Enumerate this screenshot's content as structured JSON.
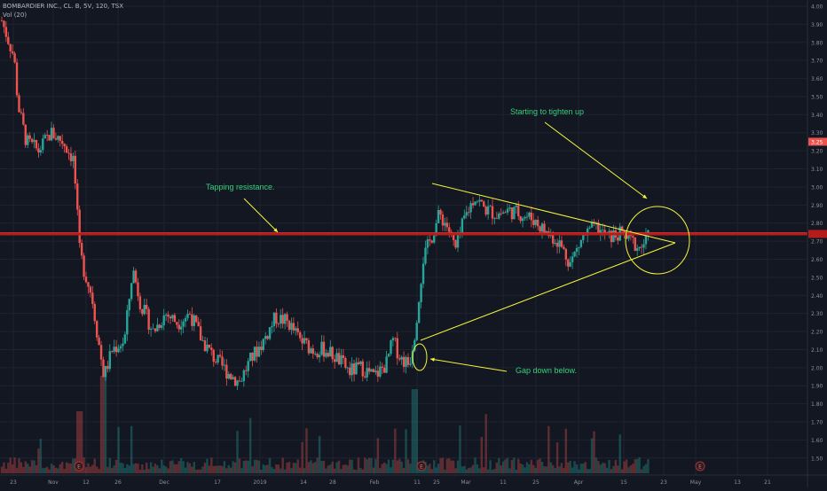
{
  "legend": {
    "symbol_line": "BOMBARDIER INC., CL. B, 5V, 120, TSX",
    "volume_line": "Vol (20)"
  },
  "annotations": {
    "resistance": "Tapping resistance.",
    "tighten": "Starting to tighten up",
    "gap": "Gap down below."
  },
  "colors": {
    "background": "#131722",
    "grid": "#1f2331",
    "up": "#26a69a",
    "down": "#ef5350",
    "resistance": "#b71c1c",
    "drawing": "#f5f53c",
    "annotation_text": "#33d17a",
    "axis_text": "#8a8f9c"
  },
  "chart_data": {
    "type": "candlestick",
    "title": "BOMBARDIER INC., CL. B, 5V, 120, TSX",
    "ylim": [
      1.45,
      4.0
    ],
    "y_ticks": [
      "4.00",
      "3.90",
      "3.80",
      "3.70",
      "3.60",
      "3.50",
      "3.40",
      "3.30",
      "3.20",
      "3.10",
      "3.00",
      "2.90",
      "2.80",
      "2.70",
      "2.60",
      "2.50",
      "2.40",
      "2.30",
      "2.20",
      "2.10",
      "2.00",
      "1.90",
      "1.80",
      "1.70",
      "1.60",
      "1.50"
    ],
    "x_ticks": [
      "23",
      "Nov",
      "12",
      "26",
      "Dec",
      "17",
      "2019",
      "14",
      "28",
      "Feb",
      "11",
      "25",
      "Mar",
      "11",
      "25",
      "Apr",
      "15",
      "23",
      "May",
      "13",
      "21"
    ],
    "last_price_label": "3.25",
    "resistance_level": 2.74,
    "earnings_markers": [
      "E",
      "E",
      "E"
    ],
    "price_path": [
      [
        0,
        3.92
      ],
      [
        0.015,
        3.72
      ],
      [
        0.02,
        3.45
      ],
      [
        0.03,
        3.25
      ],
      [
        0.045,
        3.2
      ],
      [
        0.06,
        3.3
      ],
      [
        0.075,
        3.25
      ],
      [
        0.088,
        3.15
      ],
      [
        0.095,
        2.65
      ],
      [
        0.1,
        2.55
      ],
      [
        0.11,
        2.4
      ],
      [
        0.118,
        2.15
      ],
      [
        0.125,
        1.95
      ],
      [
        0.135,
        2.1
      ],
      [
        0.15,
        2.15
      ],
      [
        0.16,
        2.55
      ],
      [
        0.17,
        2.35
      ],
      [
        0.185,
        2.2
      ],
      [
        0.2,
        2.3
      ],
      [
        0.215,
        2.25
      ],
      [
        0.23,
        2.3
      ],
      [
        0.245,
        2.15
      ],
      [
        0.26,
        2.05
      ],
      [
        0.275,
        1.98
      ],
      [
        0.29,
        1.92
      ],
      [
        0.305,
        2.05
      ],
      [
        0.32,
        2.15
      ],
      [
        0.335,
        2.28
      ],
      [
        0.35,
        2.25
      ],
      [
        0.365,
        2.15
      ],
      [
        0.38,
        2.1
      ],
      [
        0.395,
        2.1
      ],
      [
        0.41,
        2.05
      ],
      [
        0.425,
        1.98
      ],
      [
        0.44,
        2.0
      ],
      [
        0.455,
        1.95
      ],
      [
        0.47,
        2.02
      ],
      [
        0.478,
        2.15
      ],
      [
        0.488,
        2.05
      ],
      [
        0.498,
        2.02
      ],
      [
        0.505,
        2.2
      ],
      [
        0.515,
        2.6
      ],
      [
        0.525,
        2.72
      ],
      [
        0.535,
        2.85
      ],
      [
        0.545,
        2.78
      ],
      [
        0.555,
        2.65
      ],
      [
        0.565,
        2.82
      ],
      [
        0.578,
        2.95
      ],
      [
        0.59,
        2.88
      ],
      [
        0.605,
        2.85
      ],
      [
        0.62,
        2.87
      ],
      [
        0.635,
        2.85
      ],
      [
        0.65,
        2.82
      ],
      [
        0.665,
        2.75
      ],
      [
        0.68,
        2.7
      ],
      [
        0.695,
        2.58
      ],
      [
        0.71,
        2.72
      ],
      [
        0.725,
        2.78
      ],
      [
        0.74,
        2.72
      ],
      [
        0.755,
        2.74
      ],
      [
        0.77,
        2.7
      ],
      [
        0.78,
        2.66
      ],
      [
        0.79,
        2.72
      ]
    ],
    "series": [
      {
        "name": "Vol (20)",
        "type": "volume"
      }
    ]
  }
}
